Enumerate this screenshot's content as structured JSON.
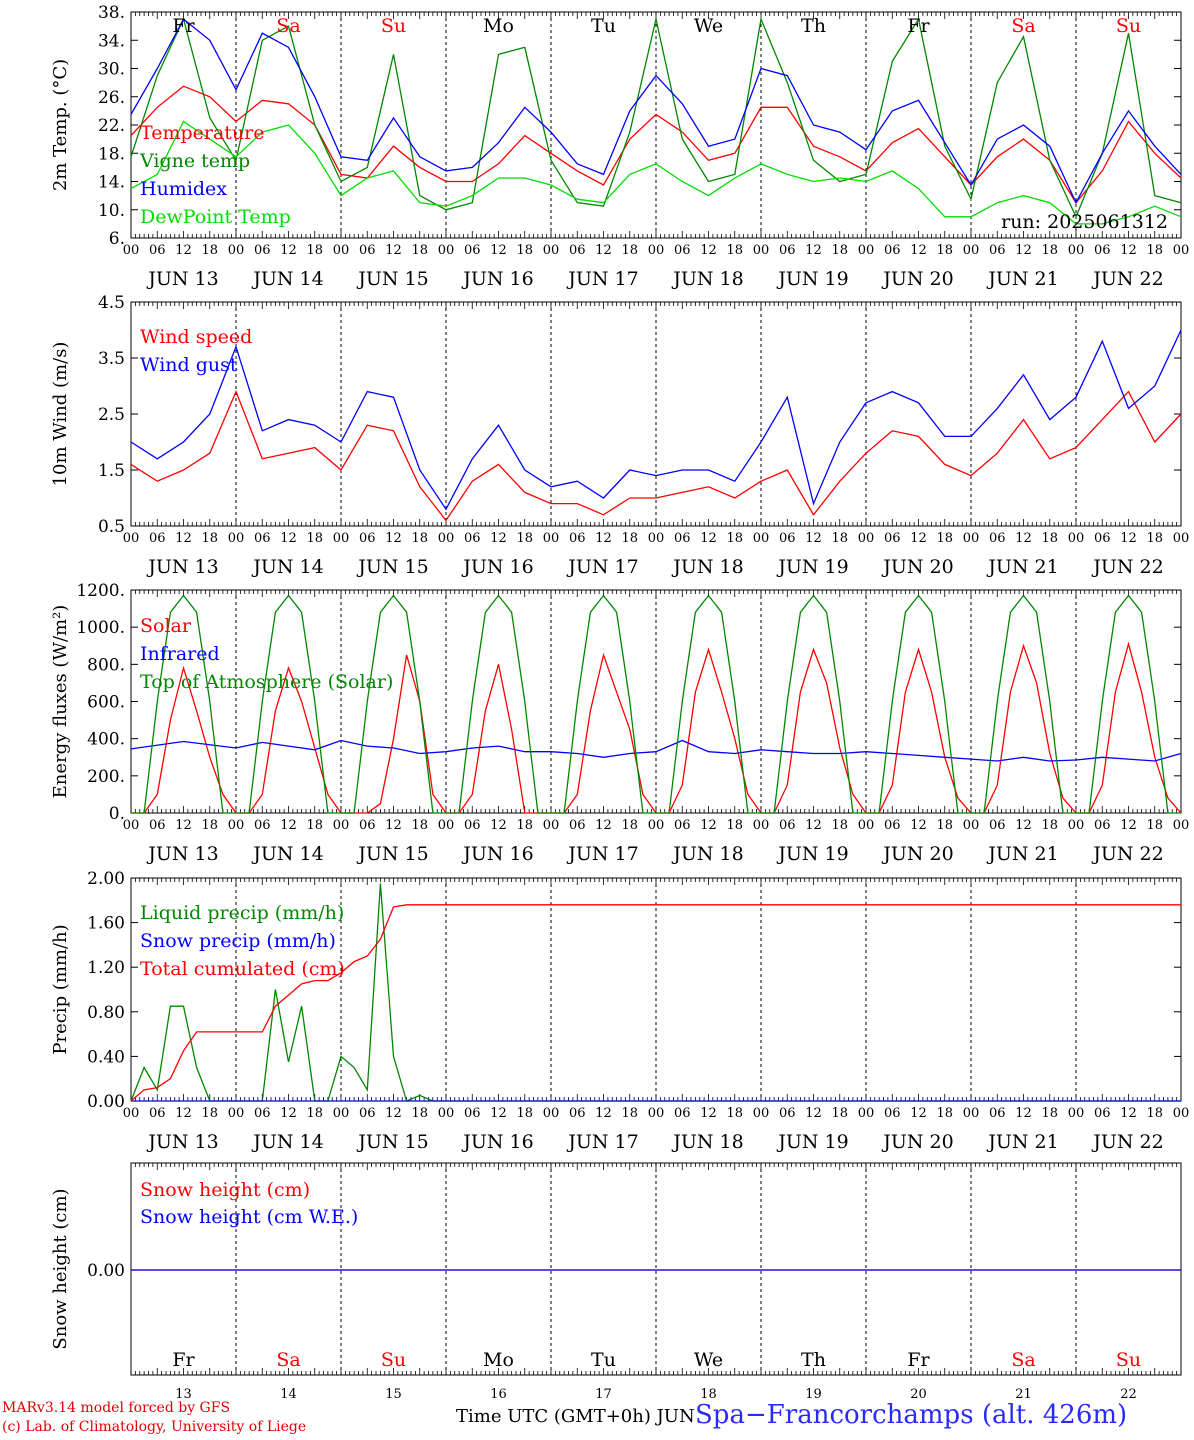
{
  "meteogram": {
    "day_names": [
      "Fr",
      "Sa",
      "Su",
      "Mo",
      "Tu",
      "We",
      "Th",
      "Fr",
      "Sa",
      "Su"
    ],
    "weekend_days": [
      1,
      2,
      8,
      9
    ],
    "day_numbers": [
      "13",
      "14",
      "15",
      "16",
      "17",
      "18",
      "19",
      "20",
      "21",
      "22"
    ],
    "date_labels": [
      "JUN 13",
      "JUN 14",
      "JUN 15",
      "JUN 16",
      "JUN 17",
      "JUN 18",
      "JUN 19",
      "JUN 20",
      "JUN 21",
      "JUN 22"
    ],
    "hour_labels": [
      "00",
      "06",
      "12",
      "18"
    ],
    "run_label": "run: 2025061312",
    "xaxis_title": "Time UTC (GMT+0h) JUN",
    "station": "Spa−Francorchamps (alt. 426m)",
    "credit_line1": "MARv3.14 model forced by GFS",
    "credit_line2": "(c) Lab. of Climatology, University of Liege",
    "colors": {
      "red": "#ff0000",
      "green": "#008800",
      "blue": "#0000ff",
      "lightgreen": "#00dd00",
      "text_blue": "#2a2aff"
    }
  },
  "chart_data": [
    {
      "type": "line",
      "ylabel": "2m Temp. (°C)",
      "ylim": [
        6,
        38
      ],
      "yticks": [
        "6.",
        "10.",
        "14.",
        "18.",
        "22.",
        "26.",
        "30.",
        "34.",
        "38."
      ],
      "x_unit": "hours from 2025-06-13 00 UTC",
      "series": [
        {
          "name": "Temperature",
          "color": "red",
          "x": [
            0,
            6,
            12,
            18,
            24,
            30,
            36,
            42,
            48,
            54,
            60,
            66,
            72,
            78,
            84,
            90,
            96,
            102,
            108,
            114,
            120,
            126,
            132,
            138,
            144,
            150,
            156,
            162,
            168,
            174,
            180,
            186,
            192,
            198,
            204,
            210,
            216,
            222,
            228,
            234,
            240
          ],
          "values": [
            20.5,
            24.5,
            27.5,
            26,
            22.5,
            25.5,
            25,
            22,
            15,
            14.5,
            19,
            16,
            14,
            14,
            16.5,
            20.5,
            18,
            15.5,
            13.5,
            20,
            23.5,
            21,
            17,
            18,
            24.5,
            24.5,
            19,
            17.5,
            15.5,
            19.5,
            21.5,
            17.5,
            13.5,
            17.5,
            20,
            17,
            11,
            15.5,
            22.5,
            18,
            14.5
          ]
        },
        {
          "name": "Vigne temp",
          "color": "green",
          "x": [
            0,
            6,
            12,
            18,
            24,
            30,
            36,
            42,
            48,
            54,
            60,
            66,
            72,
            78,
            84,
            90,
            96,
            102,
            108,
            114,
            120,
            126,
            132,
            138,
            144,
            150,
            156,
            162,
            168,
            174,
            180,
            186,
            192,
            198,
            204,
            210,
            216,
            222,
            228,
            234,
            240
          ],
          "values": [
            17.5,
            29,
            37,
            23,
            17,
            34,
            36,
            22,
            14,
            16,
            32,
            12,
            10,
            11,
            32,
            33,
            17,
            11,
            10.5,
            21,
            37,
            20,
            14,
            15,
            37,
            28,
            17,
            14,
            15,
            31,
            37,
            19,
            11.5,
            28,
            34.5,
            17,
            9,
            18,
            35,
            12,
            11
          ]
        },
        {
          "name": "Humidex",
          "color": "blue",
          "x": [
            0,
            6,
            12,
            18,
            24,
            30,
            36,
            42,
            48,
            54,
            60,
            66,
            72,
            78,
            84,
            90,
            96,
            102,
            108,
            114,
            120,
            126,
            132,
            138,
            144,
            150,
            156,
            162,
            168,
            174,
            180,
            186,
            192,
            198,
            204,
            210,
            216,
            222,
            228,
            234,
            240
          ],
          "values": [
            23.5,
            30,
            37,
            34,
            27,
            35,
            33,
            26,
            17.5,
            17,
            23,
            17.5,
            15.5,
            16,
            19.5,
            24.5,
            21,
            16.5,
            15,
            24,
            29,
            25,
            19,
            20,
            30,
            29,
            22,
            21,
            18.5,
            24,
            25.5,
            19.5,
            13.5,
            20,
            22,
            19,
            11,
            18,
            24,
            19,
            15
          ]
        },
        {
          "name": "DewPoint Temp",
          "color": "lightgreen",
          "x": [
            0,
            6,
            12,
            18,
            24,
            30,
            36,
            42,
            48,
            54,
            60,
            66,
            72,
            78,
            84,
            90,
            96,
            102,
            108,
            114,
            120,
            126,
            132,
            138,
            144,
            150,
            156,
            162,
            168,
            174,
            180,
            186,
            192,
            198,
            204,
            210,
            216,
            222,
            228,
            234,
            240
          ],
          "values": [
            13,
            15,
            22.5,
            20,
            17.5,
            21,
            22,
            18,
            12,
            14.5,
            15.5,
            11,
            10.5,
            12,
            14.5,
            14.5,
            13.5,
            11.5,
            11,
            15,
            16.5,
            14,
            12,
            14.5,
            16.5,
            15,
            14,
            14.5,
            14,
            15.5,
            13,
            9,
            9,
            11,
            12,
            11,
            8,
            8,
            9,
            10.5,
            9
          ]
        }
      ]
    },
    {
      "type": "line",
      "ylabel": "10m Wind (m/s)",
      "ylim": [
        0.5,
        4.5
      ],
      "yticks": [
        "0.5",
        "1.5",
        "2.5",
        "3.5",
        "4.5"
      ],
      "x_unit": "hours from 2025-06-13 00 UTC",
      "series": [
        {
          "name": "Wind speed",
          "color": "red",
          "x": [
            0,
            6,
            12,
            18,
            24,
            30,
            36,
            42,
            48,
            54,
            60,
            66,
            72,
            78,
            84,
            90,
            96,
            102,
            108,
            114,
            120,
            126,
            132,
            138,
            144,
            150,
            156,
            162,
            168,
            174,
            180,
            186,
            192,
            198,
            204,
            210,
            216,
            222,
            228,
            234,
            240
          ],
          "values": [
            1.6,
            1.3,
            1.5,
            1.8,
            2.9,
            1.7,
            1.8,
            1.9,
            1.5,
            2.3,
            2.2,
            1.2,
            0.6,
            1.3,
            1.6,
            1.1,
            0.9,
            0.9,
            0.7,
            1.0,
            1.0,
            1.1,
            1.2,
            1.0,
            1.3,
            1.5,
            0.7,
            1.3,
            1.8,
            2.2,
            2.1,
            1.6,
            1.4,
            1.8,
            2.4,
            1.7,
            1.9,
            2.4,
            2.9,
            2.0,
            2.5
          ]
        },
        {
          "name": "Wind gust",
          "color": "blue",
          "x": [
            0,
            6,
            12,
            18,
            24,
            30,
            36,
            42,
            48,
            54,
            60,
            66,
            72,
            78,
            84,
            90,
            96,
            102,
            108,
            114,
            120,
            126,
            132,
            138,
            144,
            150,
            156,
            162,
            168,
            174,
            180,
            186,
            192,
            198,
            204,
            210,
            216,
            222,
            228,
            234,
            240
          ],
          "values": [
            2.0,
            1.7,
            2.0,
            2.5,
            3.7,
            2.2,
            2.4,
            2.3,
            2.0,
            2.9,
            2.8,
            1.5,
            0.8,
            1.7,
            2.3,
            1.5,
            1.2,
            1.3,
            1.0,
            1.5,
            1.4,
            1.5,
            1.5,
            1.3,
            2.0,
            2.8,
            0.9,
            2.0,
            2.7,
            2.9,
            2.7,
            2.1,
            2.1,
            2.6,
            3.2,
            2.4,
            2.8,
            3.8,
            2.6,
            3.0,
            4.0
          ]
        }
      ]
    },
    {
      "type": "line",
      "ylabel": "Energy fluxes (W/m²)",
      "ylim": [
        0,
        1200
      ],
      "yticks": [
        "0.",
        "200.",
        "400.",
        "600.",
        "800.",
        "1000.",
        "1200."
      ],
      "x_unit": "hours from 2025-06-13 00 UTC",
      "series": [
        {
          "name": "Solar",
          "color": "red",
          "x": [
            0,
            3,
            6,
            9,
            12,
            15,
            18,
            21,
            24,
            27,
            30,
            33,
            36,
            39,
            42,
            45,
            48,
            51,
            54,
            57,
            60,
            63,
            66,
            69,
            72,
            75,
            78,
            81,
            84,
            87,
            90,
            93,
            96,
            99,
            102,
            105,
            108,
            111,
            114,
            117,
            120,
            123,
            126,
            129,
            132,
            135,
            138,
            141,
            144,
            147,
            150,
            153,
            156,
            159,
            162,
            165,
            168,
            171,
            174,
            177,
            180,
            183,
            186,
            189,
            192,
            195,
            198,
            201,
            204,
            207,
            210,
            213,
            216,
            219,
            222,
            225,
            228,
            231,
            234,
            237,
            240
          ],
          "values": [
            0,
            0,
            100,
            500,
            780,
            550,
            300,
            100,
            0,
            0,
            100,
            550,
            780,
            600,
            350,
            100,
            0,
            0,
            0,
            50,
            400,
            850,
            600,
            100,
            0,
            0,
            100,
            550,
            800,
            450,
            0,
            0,
            0,
            0,
            100,
            550,
            850,
            650,
            450,
            100,
            0,
            0,
            150,
            650,
            880,
            650,
            400,
            100,
            0,
            0,
            150,
            650,
            880,
            700,
            350,
            100,
            0,
            0,
            150,
            650,
            880,
            650,
            300,
            80,
            0,
            0,
            150,
            650,
            900,
            700,
            320,
            80,
            0,
            0,
            150,
            650,
            910,
            650,
            300,
            80,
            0
          ]
        },
        {
          "name": "Infrared",
          "color": "blue",
          "x": [
            0,
            12,
            24,
            30,
            36,
            42,
            48,
            54,
            60,
            66,
            72,
            78,
            84,
            90,
            96,
            102,
            108,
            114,
            120,
            126,
            132,
            138,
            144,
            150,
            156,
            162,
            168,
            174,
            180,
            186,
            192,
            198,
            204,
            210,
            216,
            222,
            228,
            234,
            240
          ],
          "values": [
            345,
            385,
            350,
            380,
            360,
            340,
            390,
            360,
            350,
            320,
            330,
            350,
            360,
            330,
            330,
            320,
            300,
            320,
            330,
            390,
            330,
            320,
            340,
            330,
            320,
            320,
            330,
            320,
            310,
            300,
            290,
            280,
            300,
            280,
            285,
            300,
            290,
            280,
            320
          ]
        },
        {
          "name": "Top of Atmosphere (Solar)",
          "color": "green",
          "x": [
            0,
            3,
            6,
            9,
            12,
            15,
            18,
            21,
            24
          ],
          "values": [
            0,
            0,
            600,
            1080,
            1170,
            1080,
            600,
            0,
            0
          ],
          "periodic": "daily"
        }
      ]
    },
    {
      "type": "line",
      "ylabel": "Precip (mm/h)",
      "ylim": [
        0,
        2
      ],
      "yticks": [
        "0.00",
        "0.40",
        "0.80",
        "1.20",
        "1.60",
        "2.00"
      ],
      "x_unit": "hours from 2025-06-13 00 UTC",
      "series": [
        {
          "name": "Liquid precip (mm/h)",
          "color": "green",
          "x": [
            0,
            3,
            6,
            9,
            12,
            15,
            18,
            21,
            24,
            30,
            33,
            36,
            39,
            42,
            45,
            48,
            51,
            54,
            57,
            60,
            63,
            66,
            69,
            72,
            240
          ],
          "values": [
            0,
            0.3,
            0.1,
            0.85,
            0.85,
            0.3,
            0,
            0,
            0,
            0,
            1.0,
            0.35,
            0.85,
            0,
            0,
            0.4,
            0.3,
            0.1,
            1.95,
            0.4,
            0,
            0.05,
            0,
            0,
            0
          ]
        },
        {
          "name": "Snow precip (mm/h)",
          "color": "blue",
          "x": [
            0,
            240
          ],
          "values": [
            0,
            0
          ]
        },
        {
          "name": "Total cumulated (cm)",
          "color": "red",
          "x": [
            0,
            3,
            6,
            9,
            12,
            15,
            18,
            21,
            24,
            30,
            33,
            36,
            39,
            42,
            45,
            48,
            51,
            54,
            57,
            60,
            63,
            66,
            69,
            72,
            240
          ],
          "values": [
            0,
            0.1,
            0.12,
            0.2,
            0.45,
            0.62,
            0.62,
            0.62,
            0.62,
            0.62,
            0.85,
            0.95,
            1.05,
            1.08,
            1.08,
            1.15,
            1.25,
            1.3,
            1.45,
            1.74,
            1.76,
            1.76,
            1.76,
            1.76,
            1.76
          ]
        }
      ]
    },
    {
      "type": "line",
      "ylabel": "Snow height (cm)",
      "yticks": [
        "0.00"
      ],
      "x_unit": "hours from 2025-06-13 00 UTC",
      "series": [
        {
          "name": "Snow height (cm)",
          "color": "red",
          "x": [
            0,
            240
          ],
          "values": [
            0,
            0
          ]
        },
        {
          "name": "Snow height (cm W.E.)",
          "color": "blue",
          "x": [
            0,
            240
          ],
          "values": [
            0,
            0
          ]
        }
      ]
    }
  ]
}
